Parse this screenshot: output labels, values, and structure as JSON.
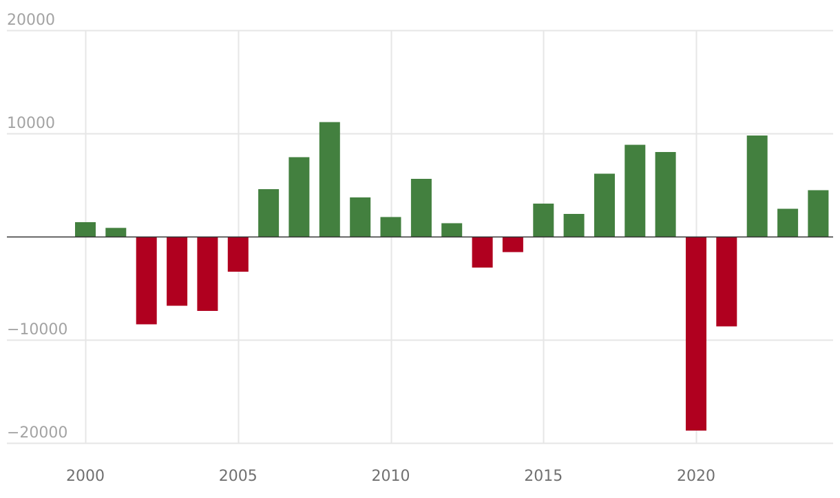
{
  "chart_data": {
    "type": "bar",
    "title": "",
    "xlabel": "",
    "ylabel": "",
    "x_ticks": [
      2000,
      2005,
      2010,
      2015,
      2020
    ],
    "y_ticks": [
      20000,
      10000,
      -10000,
      -20000
    ],
    "ylim": [
      -20000,
      20000
    ],
    "xlim": [
      1997.4,
      2024.15
    ],
    "grid": true,
    "legend": "none",
    "colors": {
      "positive": "#43803f",
      "negative": "#b0001f",
      "grid": "#e6e6e6",
      "zero_line": "#333333",
      "y_tick_text": "#a3a3a3",
      "x_tick_text": "#707070"
    },
    "categories": [
      2000,
      2001,
      2002,
      2003,
      2004,
      2005,
      2006,
      2007,
      2008,
      2009,
      2010,
      2011,
      2012,
      2013,
      2014,
      2015,
      2016,
      2017,
      2018,
      2019,
      2020,
      2021,
      2022,
      2023,
      2024
    ],
    "values": [
      1400,
      850,
      -8500,
      -6700,
      -7200,
      -3400,
      4600,
      7700,
      11100,
      3800,
      1900,
      5600,
      1300,
      -3000,
      -1500,
      3200,
      2200,
      6100,
      8900,
      8200,
      -18800,
      -8700,
      9800,
      2700,
      4500
    ]
  }
}
